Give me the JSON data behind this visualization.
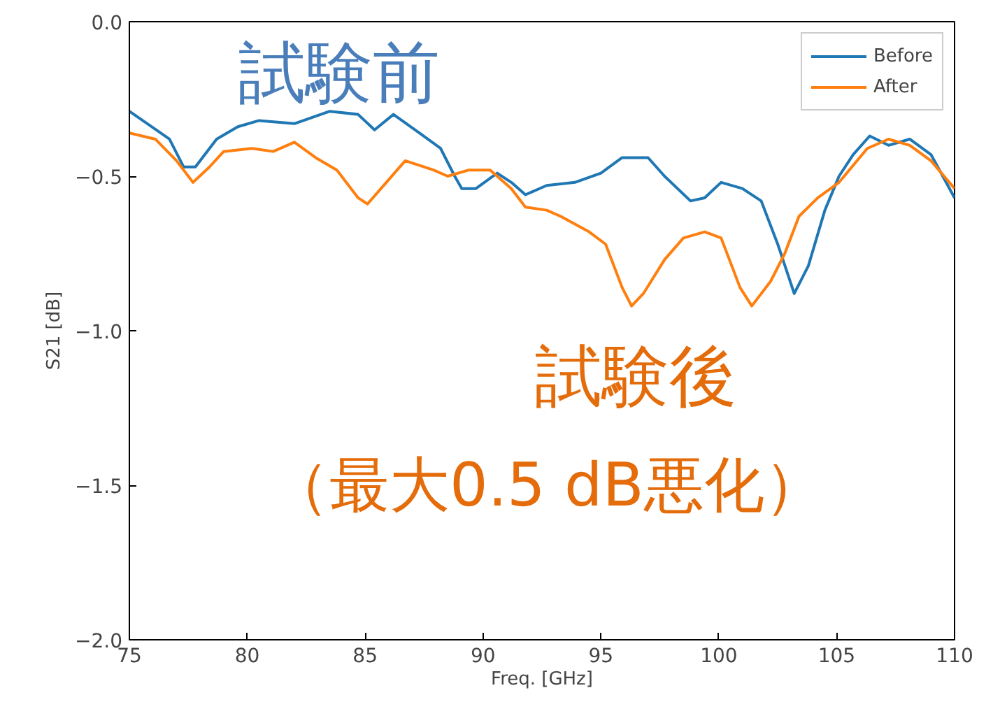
{
  "chart_data": {
    "type": "line",
    "xlabel": "Freq. [GHz]",
    "ylabel": "S21 [dB]",
    "xlim": [
      75,
      110
    ],
    "xticks": [
      75,
      80,
      85,
      90,
      95,
      100,
      105,
      110
    ],
    "ylim": [
      -2.0,
      0.0
    ],
    "yticks": [
      {
        "value": 0.0,
        "label": "0.0"
      },
      {
        "value": -0.5,
        "label": "−0.5"
      },
      {
        "value": -1.0,
        "label": "−1.0"
      },
      {
        "value": -1.5,
        "label": "−1.5"
      },
      {
        "value": -2.0,
        "label": "−2.0"
      }
    ],
    "grid": false,
    "legend": "top right",
    "marker": "none",
    "line_style": "solid",
    "annotations": [
      "試験前",
      "試験後",
      "（最大0.5 dB悪化）"
    ],
    "series": [
      {
        "name": "Before",
        "color": "#1f77b4",
        "x": [
          75,
          76.7,
          77.3,
          77.8,
          78.7,
          79.6,
          80.5,
          82,
          83.5,
          84.7,
          85.4,
          86.2,
          87.3,
          88.2,
          88.8,
          89.1,
          89.7,
          90.6,
          91.2,
          91.8,
          92.7,
          93.9,
          95.0,
          95.9,
          97.0,
          97.7,
          98.8,
          99.4,
          100.1,
          101.0,
          101.8,
          102.5,
          103.2,
          103.8,
          104.5,
          105.1,
          105.7,
          106.4,
          107.2,
          108.1,
          109.0,
          110
        ],
        "values": [
          -0.29,
          -0.38,
          -0.47,
          -0.47,
          -0.38,
          -0.34,
          -0.32,
          -0.33,
          -0.29,
          -0.3,
          -0.35,
          -0.3,
          -0.36,
          -0.41,
          -0.5,
          -0.54,
          -0.54,
          -0.49,
          -0.52,
          -0.56,
          -0.53,
          -0.52,
          -0.49,
          -0.44,
          -0.44,
          -0.5,
          -0.58,
          -0.57,
          -0.52,
          -0.54,
          -0.58,
          -0.72,
          -0.88,
          -0.79,
          -0.61,
          -0.5,
          -0.43,
          -0.37,
          -0.4,
          -0.38,
          -0.43,
          -0.57
        ]
      },
      {
        "name": "After",
        "color": "#ff7f0e",
        "x": [
          75,
          76.1,
          77,
          77.7,
          78.4,
          79,
          80.2,
          81.1,
          82,
          82.9,
          83.8,
          84.7,
          85.1,
          85.9,
          86.7,
          87.9,
          88.5,
          89.4,
          90.3,
          91.2,
          91.8,
          92.7,
          93.3,
          94.5,
          95.2,
          95.9,
          96.3,
          96.8,
          97.7,
          98.5,
          99.4,
          100.1,
          100.9,
          101.4,
          102.2,
          102.8,
          103.4,
          104.2,
          105.1,
          106.3,
          107.2,
          108.1,
          109,
          110
        ],
        "values": [
          -0.36,
          -0.38,
          -0.45,
          -0.52,
          -0.47,
          -0.42,
          -0.41,
          -0.42,
          -0.39,
          -0.44,
          -0.48,
          -0.57,
          -0.59,
          -0.52,
          -0.45,
          -0.48,
          -0.5,
          -0.48,
          -0.48,
          -0.54,
          -0.6,
          -0.61,
          -0.63,
          -0.68,
          -0.72,
          -0.86,
          -0.92,
          -0.88,
          -0.77,
          -0.7,
          -0.68,
          -0.7,
          -0.86,
          -0.92,
          -0.84,
          -0.75,
          -0.63,
          -0.57,
          -0.52,
          -0.41,
          -0.38,
          -0.4,
          -0.45,
          -0.54
        ]
      }
    ]
  }
}
